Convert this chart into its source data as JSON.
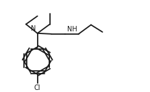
{
  "bg_color": "#ffffff",
  "line_color": "#1a1a1a",
  "line_width": 1.3,
  "font_size": 7.0,
  "figsize": [
    2.19,
    1.35
  ],
  "dpi": 100,
  "xlim": [
    -0.5,
    2.8
  ],
  "ylim": [
    -1.2,
    1.4
  ]
}
